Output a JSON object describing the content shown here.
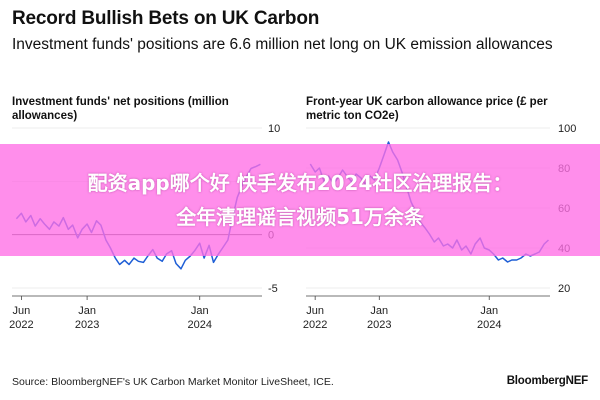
{
  "header": {
    "title": "Record Bullish Bets on UK Carbon",
    "subtitle": "Investment funds' positions are 6.6 million net long on UK emission allowances"
  },
  "footer": {
    "source": "Source: BloombergNEF's UK Carbon Market Monitor LiveSheet, ICE.",
    "brand": "BloombergNEF"
  },
  "overlay": {
    "line1": "配资app哪个好 快手发布2024社区治理报告：",
    "line2": "全年清理谣言视频51万余条"
  },
  "colors": {
    "line": "#1f5fd6",
    "zero_line": "#555555",
    "grid": "#dddddd",
    "overlay": "#ff6ee6"
  },
  "chart_data": [
    {
      "type": "line",
      "title": "Investment funds' net positions (million allowances)",
      "y_ticks": [
        10,
        5,
        0,
        -5
      ],
      "ylim": [
        -5,
        10
      ],
      "x_ticks": [
        {
          "date": "2022-06",
          "label1": "Jun",
          "label2": "2022"
        },
        {
          "date": "2023-01",
          "label1": "Jan",
          "label2": "2023"
        },
        {
          "date": "2024-01",
          "label1": "Jan",
          "label2": "2024"
        }
      ],
      "series": [
        {
          "x": [
            "2022-05-15",
            "2022-06-01",
            "2022-06-15",
            "2022-07-01",
            "2022-07-15",
            "2022-08-01",
            "2022-08-15",
            "2022-09-01",
            "2022-09-15",
            "2022-10-01",
            "2022-10-15",
            "2022-11-01",
            "2022-11-15",
            "2022-12-01",
            "2022-12-15",
            "2023-01-01",
            "2023-01-15",
            "2023-02-01",
            "2023-02-15",
            "2023-03-01",
            "2023-03-15",
            "2023-04-01",
            "2023-04-15",
            "2023-05-01",
            "2023-05-15",
            "2023-06-01",
            "2023-06-15",
            "2023-07-01",
            "2023-07-15",
            "2023-08-01",
            "2023-08-15",
            "2023-09-01",
            "2023-09-15",
            "2023-10-01",
            "2023-10-15",
            "2023-11-01",
            "2023-11-15",
            "2023-12-01",
            "2023-12-15",
            "2024-01-01",
            "2024-01-15",
            "2024-02-01",
            "2024-02-15",
            "2024-03-01",
            "2024-03-15",
            "2024-04-01",
            "2024-04-15",
            "2024-05-01",
            "2024-05-15",
            "2024-06-01",
            "2024-06-15",
            "2024-07-01",
            "2024-07-15"
          ],
          "y": [
            1.5,
            2.0,
            1.2,
            1.8,
            0.8,
            1.5,
            1.0,
            0.5,
            1.2,
            0.8,
            1.6,
            0.5,
            0.9,
            -0.3,
            0.5,
            1.0,
            0.2,
            1.3,
            0.9,
            -0.5,
            -1.2,
            -2.2,
            -2.8,
            -2.4,
            -2.8,
            -2.2,
            -2.5,
            -2.6,
            -2.0,
            -1.4,
            -2.2,
            -2.5,
            -1.8,
            -1.5,
            -2.7,
            -3.2,
            -2.4,
            -2.0,
            -1.5,
            -0.8,
            -2.2,
            -1.0,
            -2.6,
            -1.8,
            -1.2,
            -0.5,
            1.5,
            3.5,
            4.5,
            5.5,
            6.2,
            6.4,
            6.6
          ]
        }
      ]
    },
    {
      "type": "line",
      "title": "Front-year UK carbon allowance price (£ per metric ton CO2e)",
      "y_ticks": [
        100,
        80,
        60,
        40,
        20
      ],
      "ylim": [
        20,
        100
      ],
      "x_ticks": [
        {
          "date": "2022-06",
          "label1": "Jun",
          "label2": "2022"
        },
        {
          "date": "2023-01",
          "label1": "Jan",
          "label2": "2023"
        },
        {
          "date": "2024-01",
          "label1": "Jan",
          "label2": "2024"
        }
      ],
      "series": [
        {
          "x": [
            "2022-05-15",
            "2022-06-01",
            "2022-06-15",
            "2022-07-01",
            "2022-07-15",
            "2022-08-01",
            "2022-08-15",
            "2022-09-01",
            "2022-09-15",
            "2022-10-01",
            "2022-10-15",
            "2022-11-01",
            "2022-11-15",
            "2022-12-01",
            "2022-12-15",
            "2023-01-01",
            "2023-01-15",
            "2023-02-01",
            "2023-02-15",
            "2023-03-01",
            "2023-03-15",
            "2023-04-01",
            "2023-04-15",
            "2023-05-01",
            "2023-05-15",
            "2023-06-01",
            "2023-06-15",
            "2023-07-01",
            "2023-07-15",
            "2023-08-01",
            "2023-08-15",
            "2023-09-01",
            "2023-09-15",
            "2023-10-01",
            "2023-10-15",
            "2023-11-01",
            "2023-11-15",
            "2023-12-01",
            "2023-12-15",
            "2024-01-01",
            "2024-01-15",
            "2024-02-01",
            "2024-02-15",
            "2024-03-01",
            "2024-03-15",
            "2024-04-01",
            "2024-04-15",
            "2024-05-01",
            "2024-05-15",
            "2024-06-01",
            "2024-06-15",
            "2024-07-01",
            "2024-07-15"
          ],
          "y": [
            82,
            78,
            80,
            73,
            76,
            72,
            75,
            79,
            76,
            73,
            77,
            75,
            72,
            76,
            74,
            80,
            86,
            93,
            88,
            84,
            78,
            70,
            63,
            58,
            53,
            50,
            47,
            43,
            45,
            41,
            42,
            40,
            44,
            39,
            41,
            37,
            42,
            45,
            40,
            39,
            37,
            34,
            35,
            33,
            34,
            34,
            35,
            37,
            36,
            37,
            38,
            42,
            44
          ]
        }
      ]
    }
  ]
}
